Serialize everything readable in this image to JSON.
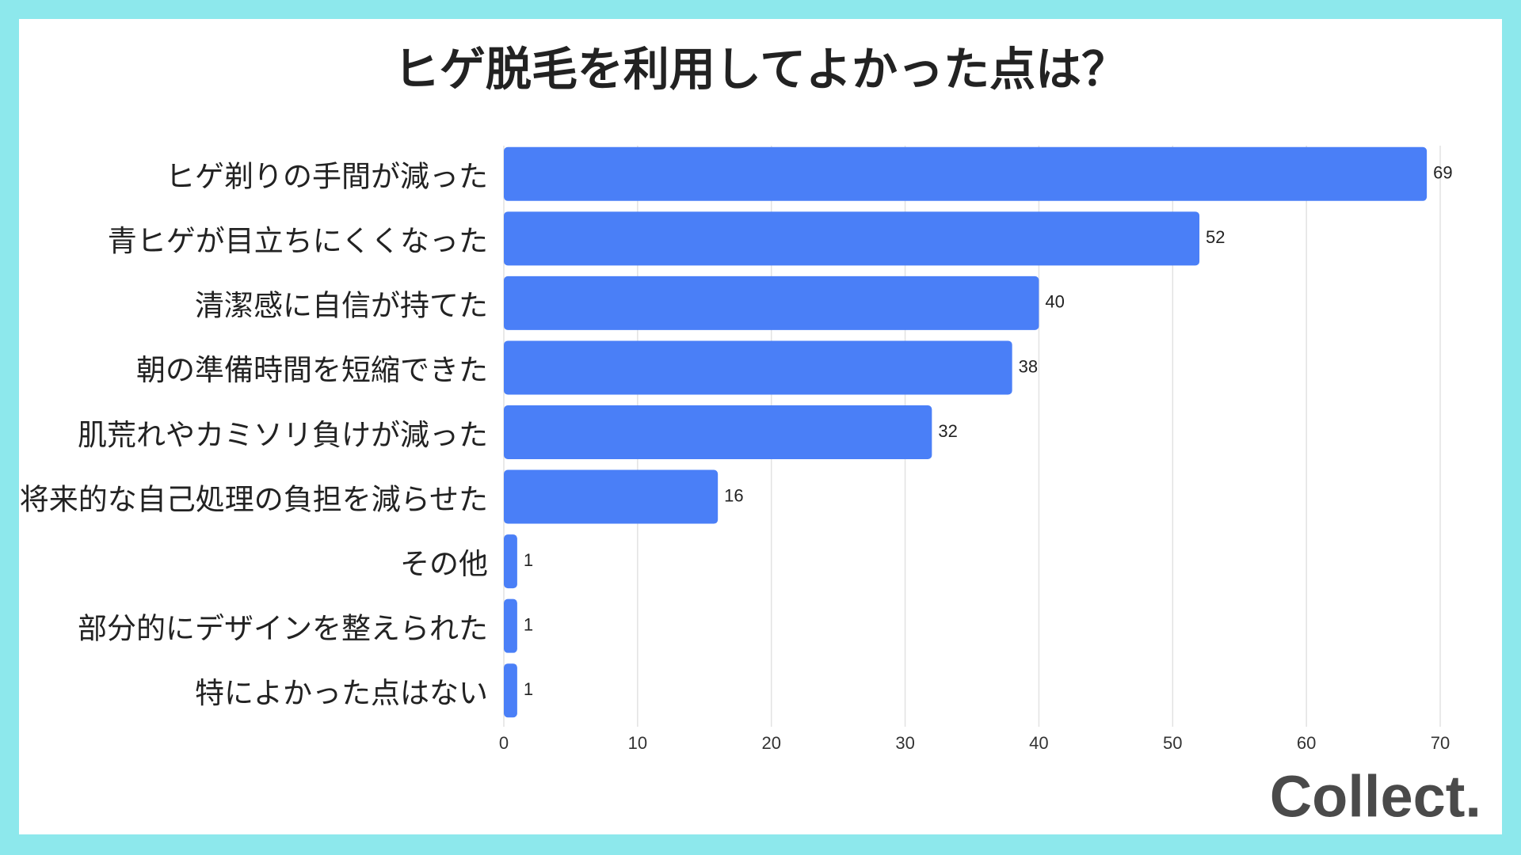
{
  "chart_data": {
    "type": "bar",
    "orientation": "horizontal",
    "title": "ヒゲ脱毛を利用してよかった点は？",
    "categories": [
      "ヒゲ剃りの手間が減った",
      "青ヒゲが目立ちにくくなった",
      "清潔感に自信が持てた",
      "朝の準備時間を短縮できた",
      "肌荒れやカミソリ負けが減った",
      "将来的な自己処理の負担を減らせた",
      "その他",
      "部分的にデザインを整えられた",
      "特によかった点はない"
    ],
    "values": [
      69,
      52,
      40,
      38,
      32,
      16,
      1,
      1,
      1
    ],
    "color": "#4a7ff7",
    "xlim": [
      0,
      70
    ],
    "xticks": [
      0,
      10,
      20,
      30,
      40,
      50,
      60,
      70
    ],
    "grid": true
  },
  "brand": "Collect."
}
